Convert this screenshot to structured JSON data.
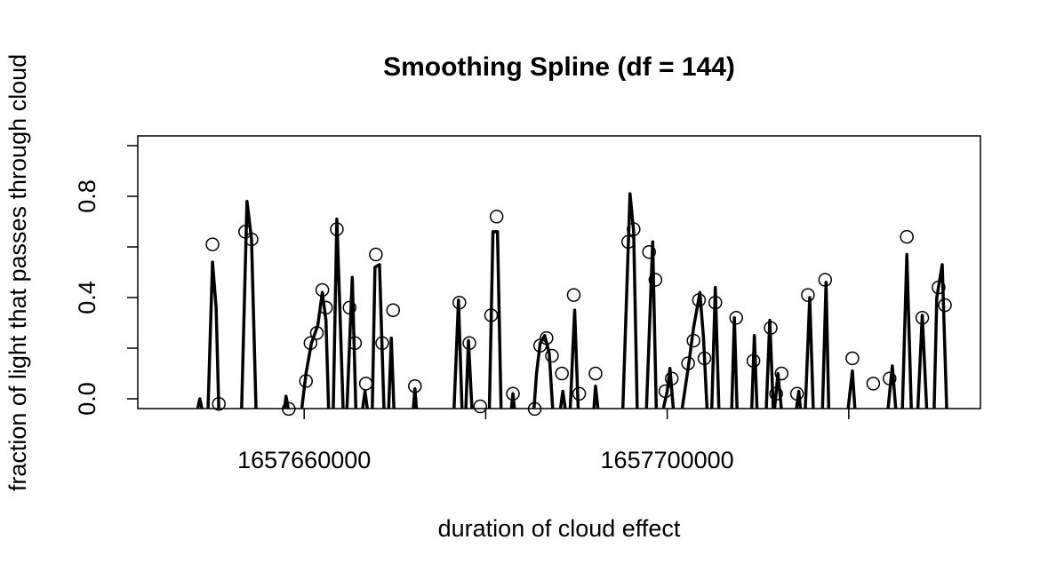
{
  "chart_data": {
    "type": "scatter",
    "title": "Smoothing Spline (df = 144)",
    "xlabel": "duration of cloud effect",
    "ylabel": "fraction of light that passes through cloud",
    "xlim": [
      1657641667,
      1657734510
    ],
    "ylim": [
      -0.0386,
      1.0386
    ],
    "xticks": [
      1657660000,
      1657700000
    ],
    "xticks_unlabeled": [
      1657680000,
      1657720000
    ],
    "yticks": [
      {
        "value": 0,
        "label": "0.0"
      },
      0.4,
      0.8
    ],
    "yticks_unlabeled": [
      0.2,
      0.6,
      1.0
    ],
    "color": "#000000",
    "x": [
      1657649900,
      1657650600,
      1657653500,
      1657654200,
      1657658300,
      1657660200,
      1657660700,
      1657661400,
      1657662000,
      1657662400,
      1657663600,
      1657665000,
      1657665600,
      1657666800,
      1657667900,
      1657668600,
      1657669800,
      1657672200,
      1657677100,
      1657678200,
      1657679400,
      1657680600,
      1657681200,
      1657683000,
      1657685400,
      1657686000,
      1657686700,
      1657687300,
      1657688400,
      1657689700,
      1657690300,
      1657692100,
      1657695700,
      1657696300,
      1657698000,
      1657698700,
      1657699800,
      1657700500,
      1657702300,
      1657702900,
      1657703500,
      1657704100,
      1657705300,
      1657707600,
      1657709500,
      1657711400,
      1657712000,
      1657712600,
      1657714300,
      1657715500,
      1657717400,
      1657720400,
      1657722700,
      1657724500,
      1657726400,
      1657728100,
      1657729900,
      1657730600
    ],
    "values": [
      0.61,
      -0.02,
      0.66,
      0.63,
      -0.04,
      0.07,
      0.22,
      0.26,
      0.43,
      0.36,
      0.67,
      0.36,
      0.22,
      0.06,
      0.57,
      0.22,
      0.35,
      0.05,
      0.38,
      0.22,
      -0.03,
      0.33,
      0.72,
      0.02,
      -0.04,
      0.21,
      0.24,
      0.17,
      0.1,
      0.41,
      0.02,
      0.1,
      0.62,
      0.67,
      0.58,
      0.47,
      0.03,
      0.08,
      0.14,
      0.23,
      0.39,
      0.16,
      0.38,
      0.32,
      0.15,
      0.28,
      0.02,
      0.1,
      0.02,
      0.41,
      0.47,
      0.16,
      0.06,
      0.08,
      0.64,
      0.32,
      0.44,
      0.37
    ],
    "series": [
      {
        "type": "line",
        "color": "#000000",
        "x": [
          1657648200,
          1657648500,
          1657648800,
          1657649400,
          1657649900,
          1657650300,
          1657650600,
          1657653100,
          1657653700,
          1657654200,
          1657654700,
          1657657800,
          1657658000,
          1657658300,
          1657659700,
          1657660200,
          1657660800,
          1657661500,
          1657662000,
          1657662400,
          1657662700,
          1657663200,
          1657663600,
          1657664000,
          1657664300,
          1657664700,
          1657665300,
          1657665700,
          1657666400,
          1657666700,
          1657667000,
          1657667500,
          1657667800,
          1657668300,
          1657668800,
          1657669300,
          1657669600,
          1657669900,
          1657672000,
          1657672200,
          1657672400,
          1657676500,
          1657677000,
          1657677400,
          1657677800,
          1657678100,
          1657678500,
          1657680400,
          1657680800,
          1657681300,
          1657681700,
          1657682800,
          1657683000,
          1657683200,
          1657685300,
          1657685600,
          1657686000,
          1657686500,
          1657687000,
          1657687400,
          1657688200,
          1657688500,
          1657688800,
          1657689300,
          1657689800,
          1657690200,
          1657691900,
          1657692100,
          1657692400,
          1657695100,
          1657695900,
          1657696300,
          1657696700,
          1657697700,
          1657698400,
          1657698800,
          1657699500,
          1657700000,
          1657700300,
          1657700700,
          1657701600,
          1657702300,
          1657702900,
          1657703600,
          1657704000,
          1657704400,
          1657704900,
          1657705300,
          1657705700,
          1657707100,
          1657707400,
          1657707700,
          1657709300,
          1657709600,
          1657709900,
          1657710900,
          1657711300,
          1657711700,
          1657711800,
          1657712200,
          1657712600,
          1657714200,
          1657714500,
          1657714700,
          1657715200,
          1657715700,
          1657716100,
          1657717100,
          1657717500,
          1657717800,
          1657719900,
          1657720400,
          1657720700,
          1657724300,
          1657724800,
          1657725200,
          1657725900,
          1657726400,
          1657726900,
          1657727600,
          1657728100,
          1657728600,
          1657729400,
          1657729700,
          1657730300,
          1657730800
        ],
        "values": [
          -0.05,
          0.0,
          -0.05,
          -0.05,
          0.54,
          0.36,
          -0.05,
          -0.05,
          0.78,
          0.63,
          -0.05,
          -0.05,
          0.01,
          -0.05,
          -0.05,
          0.1,
          0.22,
          0.29,
          0.42,
          0.31,
          -0.05,
          -0.05,
          0.71,
          0.28,
          -0.05,
          -0.05,
          0.48,
          -0.05,
          -0.05,
          0.03,
          -0.05,
          -0.05,
          0.52,
          0.53,
          -0.05,
          -0.05,
          0.24,
          -0.05,
          -0.05,
          0.04,
          -0.05,
          -0.05,
          0.39,
          -0.05,
          -0.05,
          0.23,
          -0.05,
          -0.05,
          0.66,
          0.66,
          -0.05,
          -0.05,
          0.02,
          -0.05,
          -0.05,
          0.1,
          0.22,
          0.25,
          0.18,
          -0.05,
          -0.05,
          0.03,
          -0.05,
          -0.05,
          0.35,
          -0.05,
          -0.05,
          0.05,
          -0.05,
          -0.05,
          0.81,
          0.66,
          -0.05,
          -0.05,
          0.62,
          -0.05,
          -0.05,
          0.03,
          0.12,
          -0.05,
          -0.05,
          0.12,
          0.28,
          0.42,
          0.24,
          -0.05,
          -0.05,
          0.44,
          -0.05,
          -0.05,
          0.32,
          -0.05,
          -0.05,
          0.25,
          -0.05,
          -0.05,
          0.31,
          -0.05,
          -0.05,
          0.1,
          -0.05,
          -0.05,
          0.03,
          -0.05,
          -0.05,
          0.4,
          -0.05,
          -0.05,
          0.46,
          -0.05,
          -0.05,
          0.11,
          -0.05,
          -0.05,
          0.13,
          -0.05,
          -0.05,
          0.57,
          -0.05,
          -0.05,
          0.33,
          -0.05,
          -0.05,
          0.4,
          0.53,
          -0.05
        ]
      }
    ]
  }
}
